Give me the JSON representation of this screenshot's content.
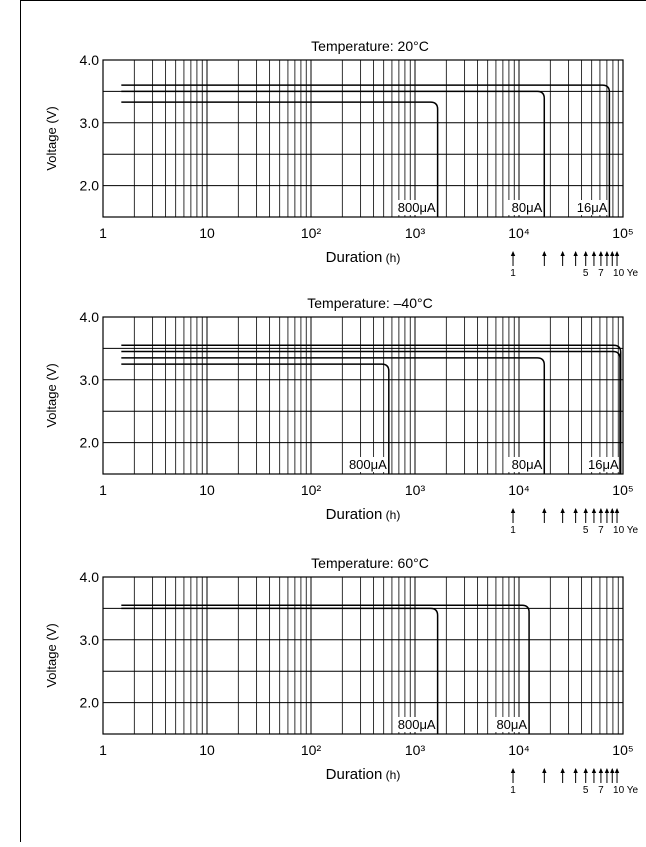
{
  "chart_data": [
    {
      "type": "line",
      "title": "Temperature: 20°C",
      "xlabel": "Duration",
      "xlabel_unit": "(h)",
      "ylabel": "Voltage (V)",
      "x_scale": "log",
      "xlim": [
        1,
        100000
      ],
      "ylim": [
        1.5,
        4.0
      ],
      "x_tick_labels": [
        "1",
        "10",
        "10²",
        "10³",
        "10⁴",
        "10⁵"
      ],
      "y_tick_labels": [
        "4.0",
        "3.0",
        "2.0"
      ],
      "grid": true,
      "series": [
        {
          "name": "800μA",
          "plateau_v": 3.33,
          "end_hours": 1650
        },
        {
          "name": "80μA",
          "plateau_v": 3.5,
          "end_hours": 17500
        },
        {
          "name": "16μA",
          "plateau_v": 3.6,
          "end_hours": 74000
        }
      ],
      "years_axis": {
        "labels": [
          "1",
          "5",
          "7",
          "10 Ye"
        ],
        "year_values": [
          1,
          2,
          3,
          4,
          5,
          6,
          7,
          8,
          9,
          10
        ]
      }
    },
    {
      "type": "line",
      "title": "Temperature: –40°C",
      "xlabel": "Duration",
      "xlabel_unit": "(h)",
      "ylabel": "Voltage (V)",
      "x_scale": "log",
      "xlim": [
        1,
        100000
      ],
      "ylim": [
        1.5,
        4.0
      ],
      "x_tick_labels": [
        "1",
        "10",
        "10²",
        "10³",
        "10⁴",
        "10⁵"
      ],
      "y_tick_labels": [
        "4.0",
        "3.0",
        "2.0"
      ],
      "grid": true,
      "series": [
        {
          "name": "800μA",
          "plateau_v": 3.25,
          "end_hours": 560
        },
        {
          "name": "80μA",
          "plateau_v": 3.35,
          "end_hours": 17500
        },
        {
          "name": "16μA",
          "plateau_v": 3.55,
          "end_hours": 95000
        }
      ],
      "extra_plateaus_v": [
        3.45
      ],
      "years_axis": {
        "labels": [
          "1",
          "5",
          "7",
          "10 Ye"
        ],
        "year_values": [
          1,
          2,
          3,
          4,
          5,
          6,
          7,
          8,
          9,
          10
        ]
      }
    },
    {
      "type": "line",
      "title": "Temperature: 60°C",
      "xlabel": "Duration",
      "xlabel_unit": "(h)",
      "ylabel": "Voltage (V)",
      "x_scale": "log",
      "xlim": [
        1,
        100000
      ],
      "ylim": [
        1.5,
        4.0
      ],
      "x_tick_labels": [
        "1",
        "10",
        "10²",
        "10³",
        "10⁴",
        "10⁵"
      ],
      "y_tick_labels": [
        "4.0",
        "3.0",
        "2.0"
      ],
      "grid": true,
      "series": [
        {
          "name": "800μA",
          "plateau_v": 3.5,
          "end_hours": 1650
        },
        {
          "name": "80μA",
          "plateau_v": 3.55,
          "end_hours": 12500
        }
      ],
      "years_axis": {
        "labels": [
          "1",
          "5",
          "7",
          "10 Ye"
        ],
        "year_values": [
          1,
          2,
          3,
          4,
          5,
          6,
          7,
          8,
          9,
          10
        ]
      }
    }
  ]
}
